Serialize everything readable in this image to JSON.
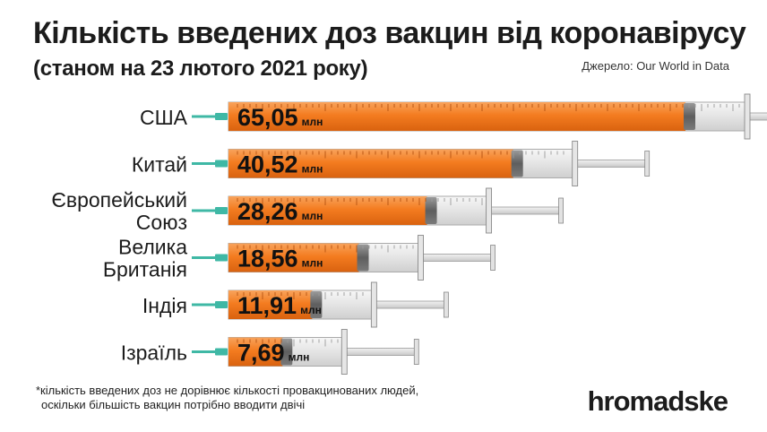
{
  "header": {
    "title": "Кількість введених доз вакцин від коронавірусу",
    "subtitle": "(станом на 23 лютого 2021 року)",
    "source": "Джерело: Our World in Data"
  },
  "footnote": {
    "line1": "*кількість введених доз не дорівнює кількості провакцинованих людей,",
    "line2": "оскільки більшість вакцин потрібно вводити двічі"
  },
  "brand": "hromadske",
  "colors": {
    "fill": "#f47c20",
    "fill_dark": "#d9620f",
    "needle": "#3fb8a5",
    "text": "#1c1c1c"
  },
  "chart_data": {
    "type": "bar",
    "orientation": "horizontal",
    "title": "Кількість введених доз вакцин від коронавірусу",
    "subtitle": "(станом на 23 лютого 2021 року)",
    "unit": "млн",
    "categories": [
      [
        "США"
      ],
      [
        "Китай"
      ],
      [
        "Європейський",
        "Союз"
      ],
      [
        "Велика",
        "Британія"
      ],
      [
        "Індія"
      ],
      [
        "Ізраїль"
      ]
    ],
    "values": [
      65.05,
      40.52,
      28.26,
      18.56,
      11.91,
      7.69
    ],
    "value_labels": [
      "65,05",
      "40,52",
      "28,26",
      "18,56",
      "11,91",
      "7,69"
    ]
  }
}
